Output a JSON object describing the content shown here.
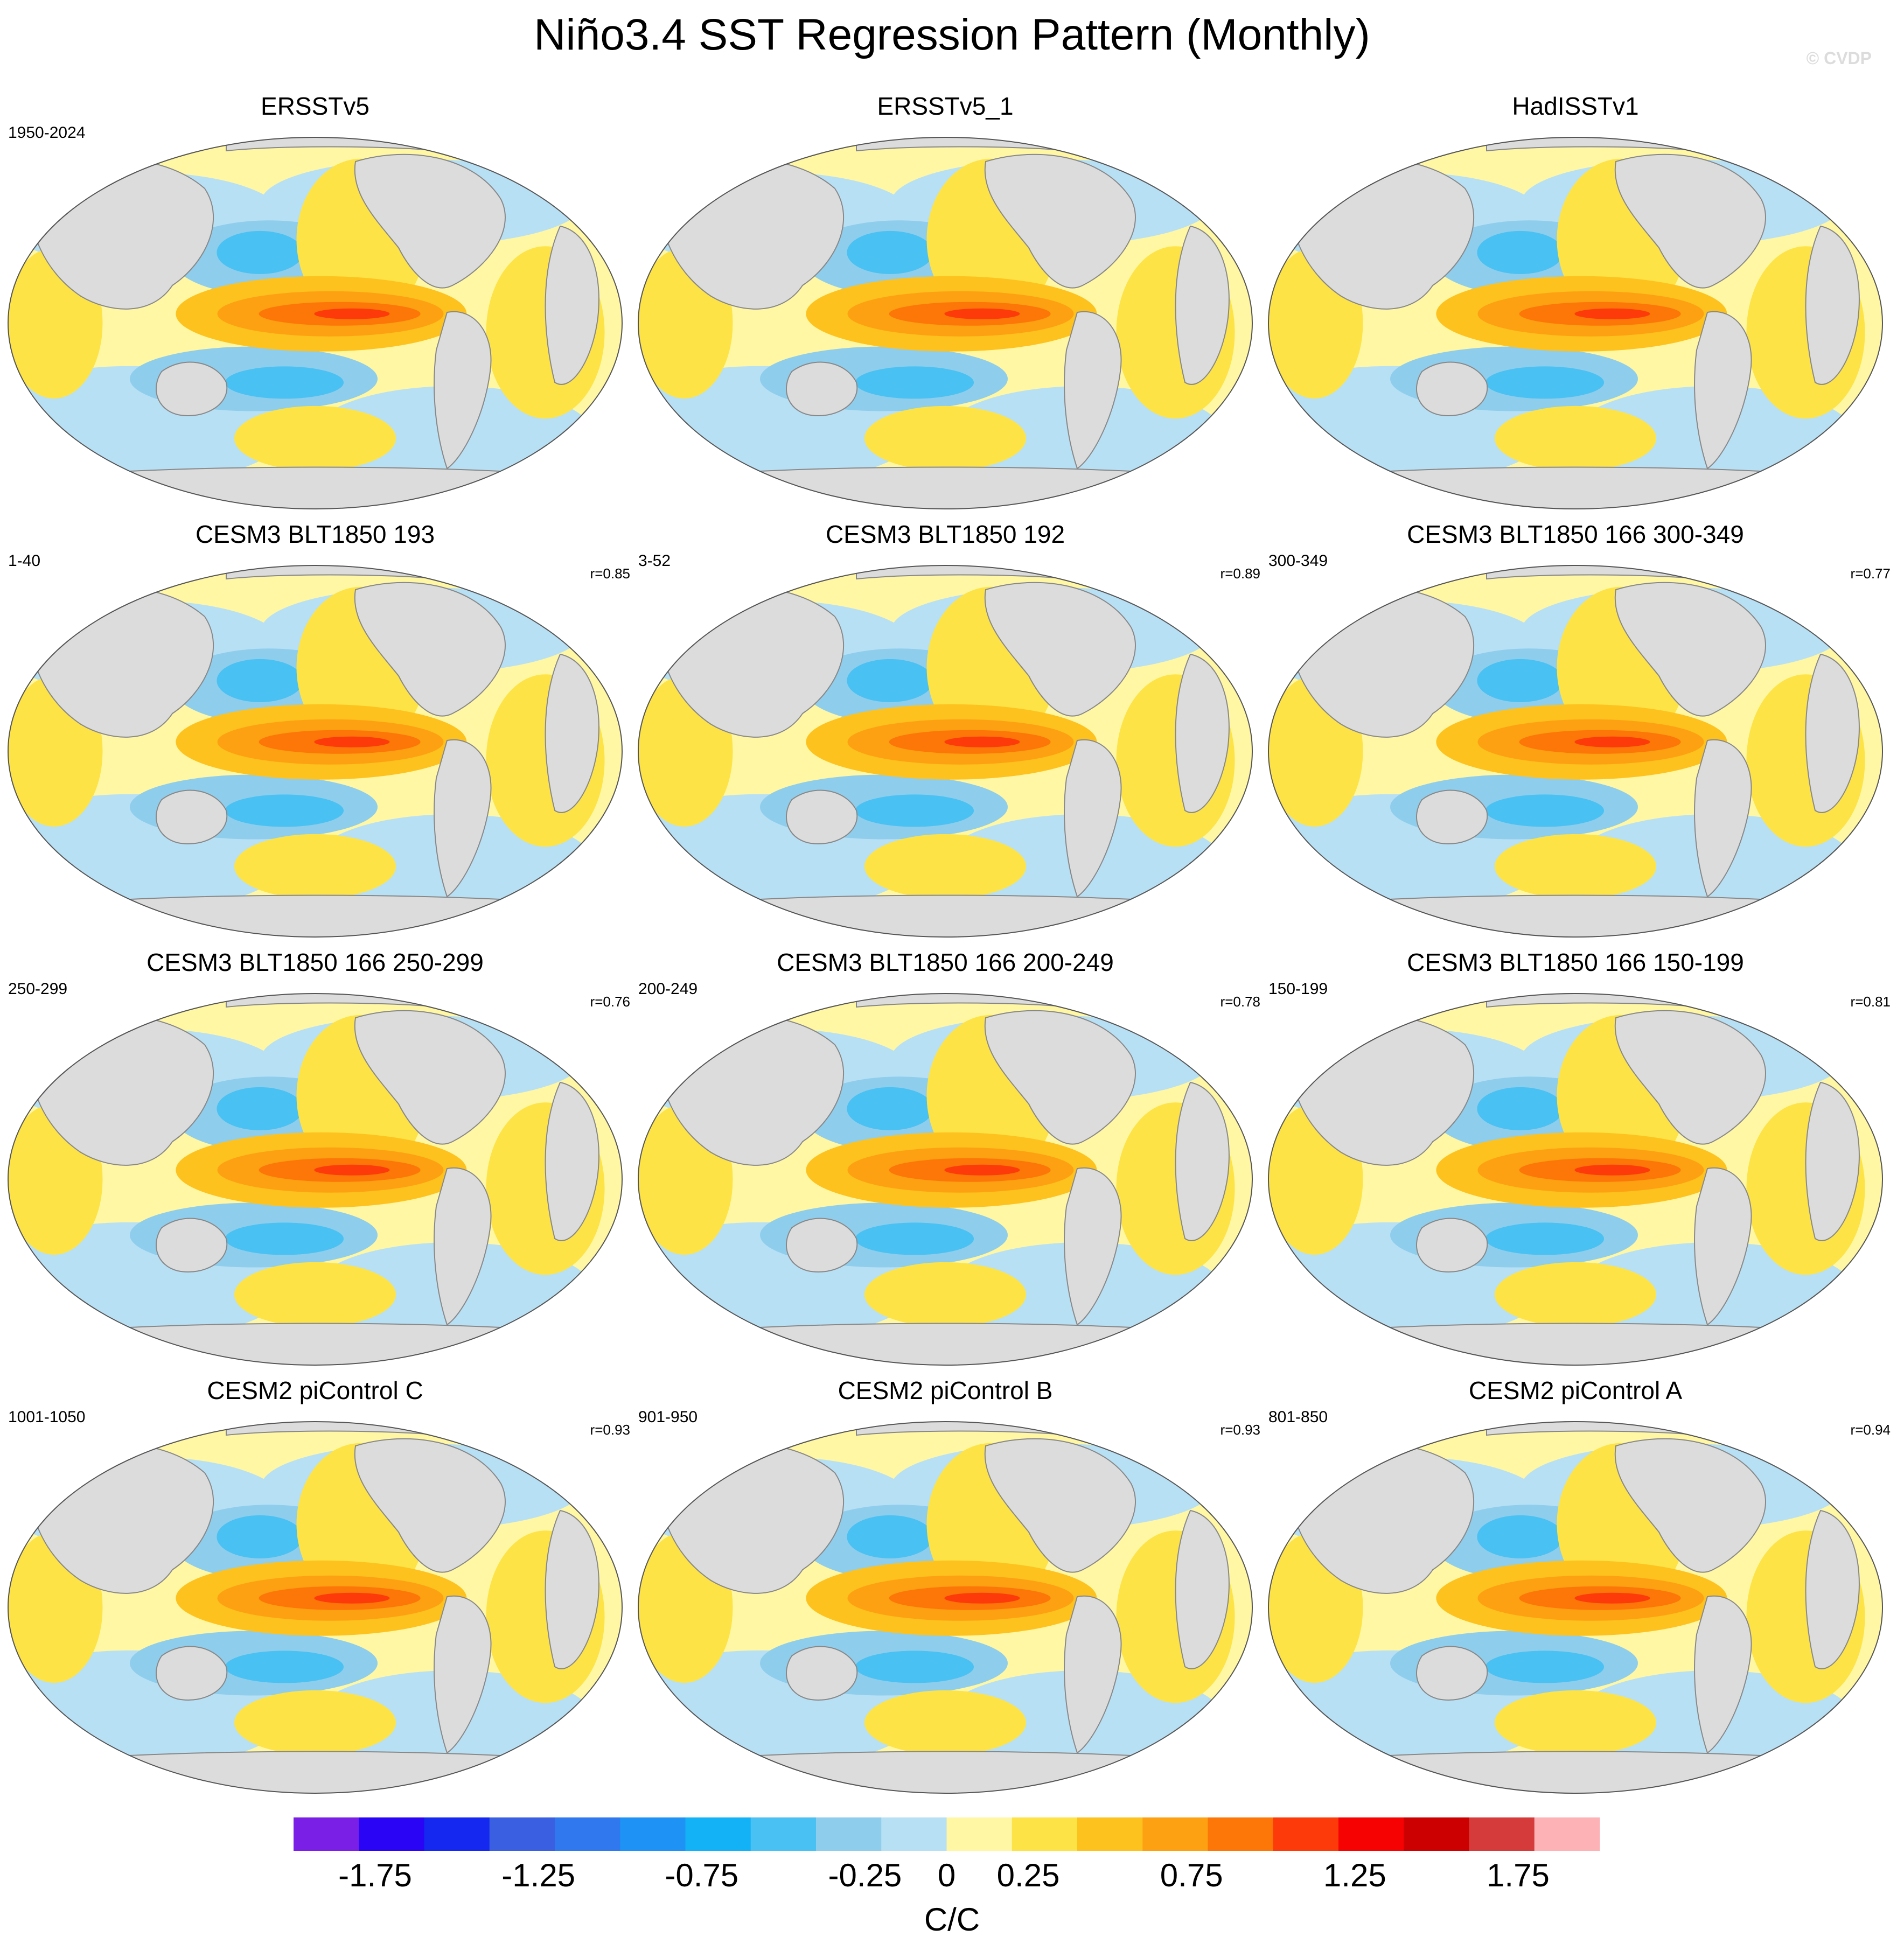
{
  "title": "Niño3.4 SST Regression Pattern (Monthly)",
  "watermark": "© CVDP",
  "chart_data": {
    "type": "heatmap",
    "title": "Niño3.4 SST Regression Pattern (Monthly)",
    "projection": "Robinson (global, Pacific-centered)",
    "variable": "SST regression on Niño3.4 index",
    "units": "C/C",
    "panels": [
      {
        "title": "ERSSTv5",
        "period": "1950-2024",
        "r": ""
      },
      {
        "title": "ERSSTv5_1",
        "period": "",
        "r": ""
      },
      {
        "title": "HadISSTv1",
        "period": "",
        "r": ""
      },
      {
        "title": "CESM3 BLT1850 193",
        "period": "1-40",
        "r": "r=0.85"
      },
      {
        "title": "CESM3 BLT1850 192",
        "period": "3-52",
        "r": "r=0.89"
      },
      {
        "title": "CESM3 BLT1850 166 300-349",
        "period": "300-349",
        "r": "r=0.77"
      },
      {
        "title": "CESM3 BLT1850 166 250-299",
        "period": "250-299",
        "r": "r=0.76"
      },
      {
        "title": "CESM3 BLT1850 166 200-249",
        "period": "200-249",
        "r": "r=0.78"
      },
      {
        "title": "CESM3 BLT1850 166 150-199",
        "period": "150-199",
        "r": "r=0.81"
      },
      {
        "title": "CESM2 piControl C",
        "period": "1001-1050",
        "r": "r=0.93"
      },
      {
        "title": "CESM2 piControl B",
        "period": "901-950",
        "r": "r=0.93"
      },
      {
        "title": "CESM2 piControl A",
        "period": "801-850",
        "r": "r=0.94"
      }
    ],
    "colorbar": {
      "label": "C/C",
      "range": [
        -2.0,
        2.0
      ],
      "interval": 0.2,
      "tick_labels": [
        "-1.75",
        "-1.25",
        "-0.75",
        "-0.25",
        "0",
        "0.25",
        "0.75",
        "1.25",
        "1.75"
      ],
      "tick_values": [
        -1.75,
        -1.25,
        -0.75,
        -0.25,
        0,
        0.25,
        0.75,
        1.25,
        1.75
      ],
      "colors": [
        "#7a1fe6",
        "#2a05f5",
        "#1428f0",
        "#3a5fe0",
        "#2f78ee",
        "#1f92f5",
        "#13b2f7",
        "#49c1f2",
        "#8fcdec",
        "#b8e0f5",
        "#fff7a3",
        "#fde346",
        "#fdc21e",
        "#fda112",
        "#fd7608",
        "#fd3a0a",
        "#f70203",
        "#cc0000",
        "#d63b3b",
        "#fdb3b6"
      ]
    }
  }
}
